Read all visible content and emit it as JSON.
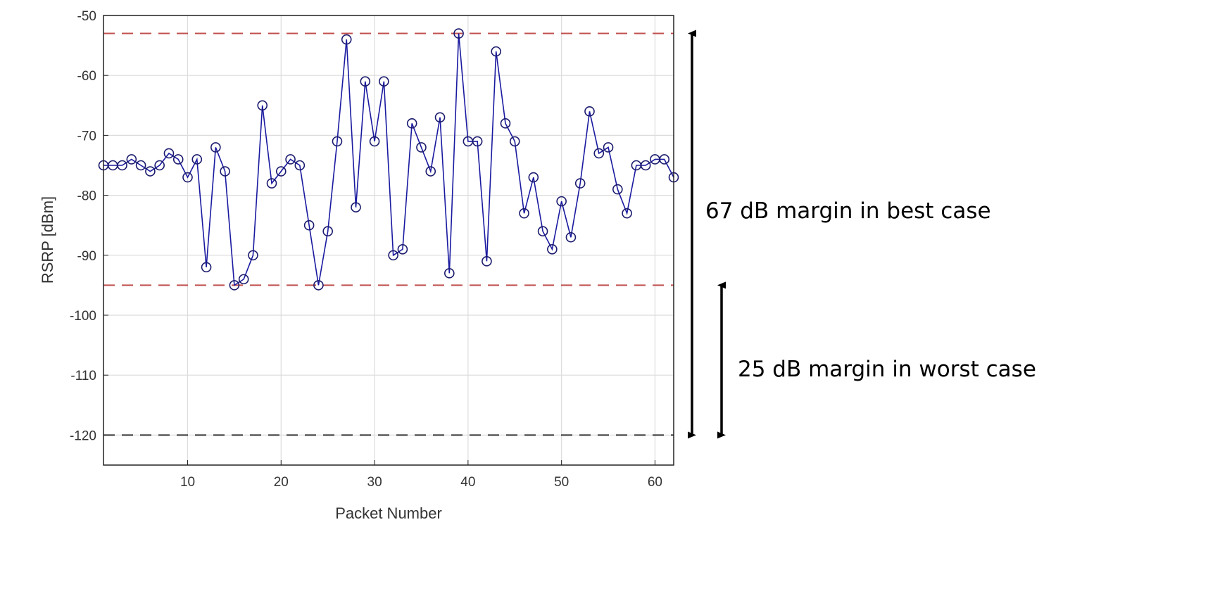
{
  "chart_data": {
    "type": "line",
    "title": "",
    "xlabel": "Packet Number",
    "ylabel": "RSRP [dBm]",
    "xlim": [
      1,
      62
    ],
    "ylim": [
      -125,
      -50
    ],
    "grid": true,
    "marker": "circle",
    "x_ticks": [
      10,
      20,
      30,
      40,
      50,
      60
    ],
    "y_ticks": [
      -50,
      -60,
      -70,
      -80,
      -90,
      -100,
      -110,
      -120
    ],
    "series": [
      {
        "color": "#1a1aa0",
        "x": [
          1,
          2,
          3,
          4,
          5,
          6,
          7,
          8,
          9,
          10,
          11,
          12,
          13,
          14,
          15,
          16,
          17,
          18,
          19,
          20,
          21,
          22,
          23,
          24,
          25,
          26,
          27,
          28,
          29,
          30,
          31,
          32,
          33,
          34,
          35,
          36,
          37,
          38,
          39,
          40,
          41,
          42,
          43,
          44,
          45,
          46,
          47,
          48,
          49,
          50,
          51,
          52,
          53,
          54,
          55,
          56,
          57,
          58,
          59,
          60,
          61,
          62
        ],
        "y": [
          -75,
          -75,
          -75,
          -74,
          -75,
          -76,
          -75,
          -73,
          -74,
          -77,
          -74,
          -92,
          -72,
          -76,
          -95,
          -94,
          -90,
          -65,
          -78,
          -76,
          -74,
          -75,
          -85,
          -95,
          -86,
          -71,
          -54,
          -82,
          -61,
          -71,
          -61,
          -90,
          -89,
          -68,
          -72,
          -76,
          -67,
          -93,
          -53,
          -71,
          -71,
          -91,
          -56,
          -68,
          -71,
          -83,
          -77,
          -86,
          -89,
          -81,
          -87,
          -78,
          -66,
          -73,
          -72,
          -79,
          -83,
          -75,
          -75,
          -74,
          -74,
          -77
        ]
      }
    ],
    "reference_lines": [
      {
        "y": -53,
        "color": "#c0504d",
        "style": "dashed"
      },
      {
        "y": -95,
        "color": "#c0504d",
        "style": "dashed"
      },
      {
        "y": -120,
        "color": "#333333",
        "style": "dashed"
      }
    ],
    "annotations": [
      {
        "text": "67 dB margin in best case",
        "from": -53,
        "to": -120
      },
      {
        "text": "25 dB margin in worst case",
        "from": -95,
        "to": -120
      }
    ]
  }
}
